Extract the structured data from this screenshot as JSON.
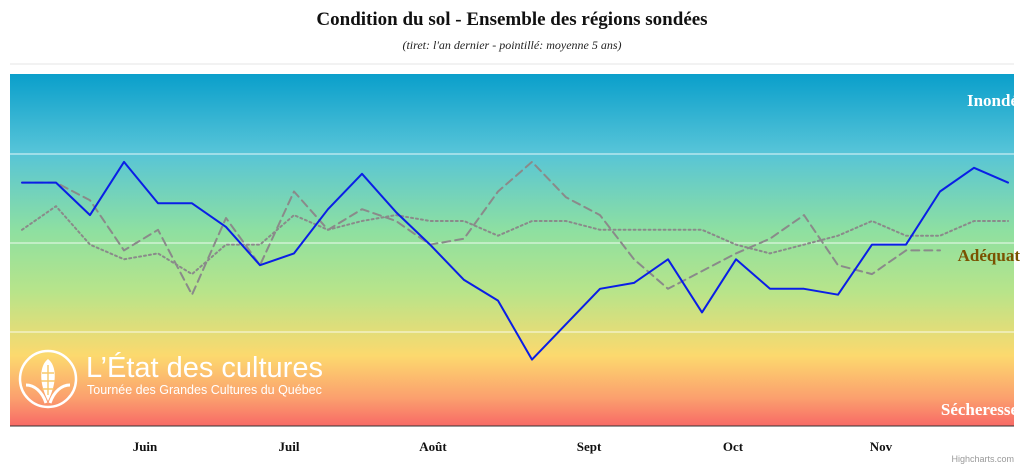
{
  "chart_data": {
    "type": "line",
    "title": "Condition du sol - Ensemble des régions sondées",
    "subtitle": "(tiret: l'an dernier - pointillé: moyenne 5 ans)",
    "ylim": [
      0,
      1
    ],
    "x_ticks": [
      "Juin",
      "Juil",
      "Août",
      "Sept",
      "Oct",
      "Nov"
    ],
    "band_labels": {
      "top": "Inondé",
      "middle": "Adéquat",
      "bottom": "Sécheresse"
    },
    "colors": {
      "current": "#0a1ee6",
      "last_year": "#8a8a8a",
      "average": "#8a8a8a",
      "top_label": "#ffffff",
      "middle_label": "#7a5200",
      "bottom_label": "#ffffff"
    },
    "series": [
      {
        "key": "current",
        "style": "solid",
        "values": [
          0.72,
          0.72,
          0.61,
          0.79,
          0.65,
          0.65,
          0.57,
          0.44,
          0.48,
          0.63,
          0.75,
          0.62,
          0.51,
          0.39,
          0.32,
          0.12,
          0.24,
          0.36,
          0.38,
          0.46,
          0.28,
          0.46,
          0.36,
          0.36,
          0.34,
          0.51,
          0.51,
          0.69,
          0.77,
          0.72
        ]
      },
      {
        "key": "last_year",
        "style": "dash",
        "values": [
          0.72,
          0.72,
          0.66,
          0.49,
          0.56,
          0.34,
          0.6,
          0.44,
          0.69,
          0.56,
          0.63,
          0.59,
          0.51,
          0.53,
          0.69,
          0.79,
          0.67,
          0.61,
          0.46,
          0.36,
          0.42,
          0.48,
          0.53,
          0.61,
          0.44,
          0.41,
          0.49,
          0.49
        ]
      },
      {
        "key": "average",
        "style": "dot",
        "values": [
          0.56,
          0.64,
          0.51,
          0.46,
          0.48,
          0.41,
          0.51,
          0.51,
          0.61,
          0.56,
          0.59,
          0.61,
          0.59,
          0.59,
          0.54,
          0.59,
          0.59,
          0.56,
          0.56,
          0.56,
          0.56,
          0.51,
          0.48,
          0.51,
          0.54,
          0.59,
          0.54,
          0.54,
          0.59,
          0.59
        ]
      }
    ],
    "grid": true,
    "legend": "none"
  },
  "logo": {
    "title": "L’État des cultures",
    "subtitle": "Tournée des Grandes Cultures du Québec"
  },
  "credit": "Highcharts.com"
}
